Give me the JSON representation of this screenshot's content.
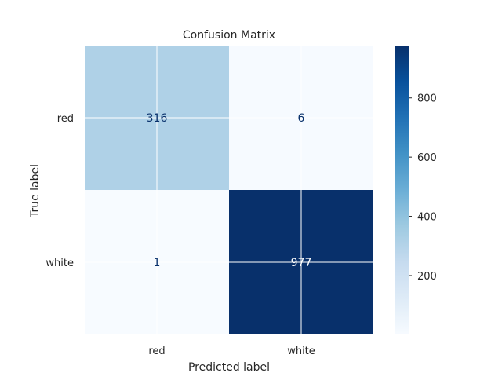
{
  "chart_data": {
    "type": "heatmap",
    "title": "Confusion Matrix",
    "xlabel": "Predicted label",
    "ylabel": "True label",
    "x_categories": [
      "red",
      "white"
    ],
    "y_categories": [
      "red",
      "white"
    ],
    "values": [
      [
        316,
        6
      ],
      [
        1,
        977
      ]
    ],
    "colormap": "Blues",
    "colorbar": {
      "range": [
        1,
        977
      ],
      "ticks": [
        200,
        400,
        600,
        800
      ],
      "tick_labels": [
        "200",
        "400",
        "600",
        "800"
      ]
    },
    "grid": true
  }
}
